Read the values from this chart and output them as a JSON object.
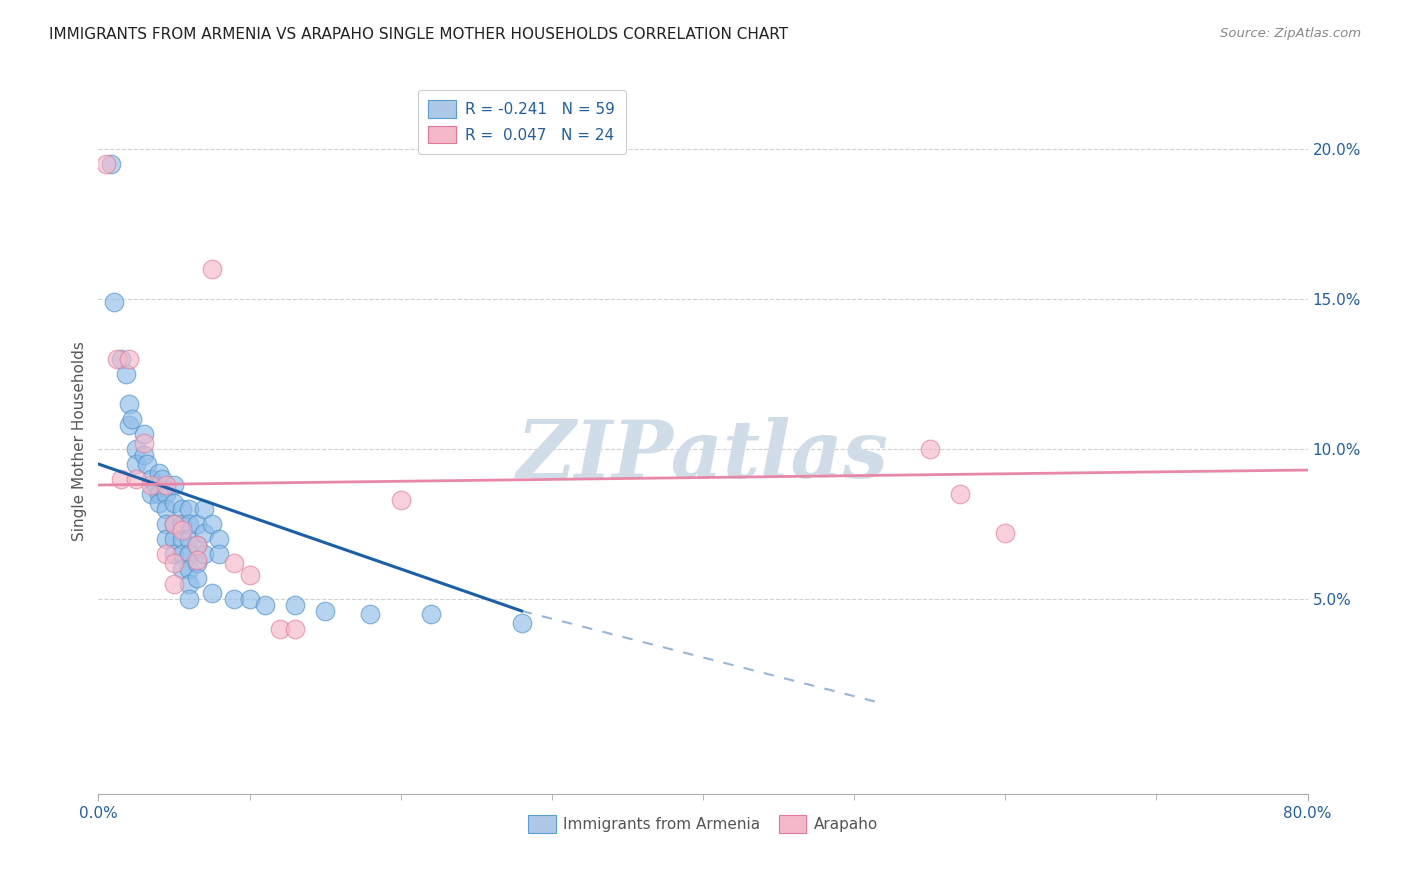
{
  "title": "IMMIGRANTS FROM ARMENIA VS ARAPAHO SINGLE MOTHER HOUSEHOLDS CORRELATION CHART",
  "source": "Source: ZipAtlas.com",
  "ylabel": "Single Mother Households",
  "yticks": [
    5,
    10,
    15,
    20
  ],
  "ylabels": [
    "5.0%",
    "10.0%",
    "15.0%",
    "20.0%"
  ],
  "xlim": [
    0,
    80
  ],
  "ylim": [
    -1.5,
    22
  ],
  "legend_top": [
    {
      "label": "R = -0.241   N = 59",
      "fc": "#aec8e8",
      "ec": "#5a9fd4"
    },
    {
      "label": "R =  0.047   N = 24",
      "fc": "#f5b8c8",
      "ec": "#e07898"
    }
  ],
  "legend_bottom": [
    "Immigrants from Armenia",
    "Arapaho"
  ],
  "blue_fc": "#90bce8",
  "blue_ec": "#4a8fc4",
  "pink_fc": "#f5b8c8",
  "pink_ec": "#e07898",
  "blue_line_color": "#1a5fa8",
  "pink_line_color": "#e888a8",
  "watermark": "ZIPatlas",
  "watermark_color": "#d0dde8",
  "blue_points": [
    [
      0.8,
      19.5
    ],
    [
      1.0,
      14.9
    ],
    [
      1.5,
      13.0
    ],
    [
      1.8,
      12.5
    ],
    [
      2.0,
      11.5
    ],
    [
      2.0,
      10.8
    ],
    [
      2.2,
      11.0
    ],
    [
      2.5,
      10.0
    ],
    [
      2.5,
      9.5
    ],
    [
      3.0,
      10.5
    ],
    [
      3.0,
      9.8
    ],
    [
      3.2,
      9.5
    ],
    [
      3.5,
      9.0
    ],
    [
      3.5,
      8.5
    ],
    [
      3.8,
      8.8
    ],
    [
      4.0,
      9.2
    ],
    [
      4.0,
      8.5
    ],
    [
      4.0,
      8.2
    ],
    [
      4.2,
      9.0
    ],
    [
      4.5,
      8.5
    ],
    [
      4.5,
      8.0
    ],
    [
      4.5,
      7.5
    ],
    [
      4.5,
      7.0
    ],
    [
      5.0,
      8.8
    ],
    [
      5.0,
      8.2
    ],
    [
      5.0,
      7.5
    ],
    [
      5.0,
      7.0
    ],
    [
      5.0,
      6.5
    ],
    [
      5.5,
      8.0
    ],
    [
      5.5,
      7.5
    ],
    [
      5.5,
      7.0
    ],
    [
      5.5,
      6.5
    ],
    [
      5.5,
      6.0
    ],
    [
      6.0,
      8.0
    ],
    [
      6.0,
      7.5
    ],
    [
      6.0,
      7.0
    ],
    [
      6.0,
      6.5
    ],
    [
      6.0,
      6.0
    ],
    [
      6.0,
      5.5
    ],
    [
      6.0,
      5.0
    ],
    [
      6.5,
      7.5
    ],
    [
      6.5,
      6.8
    ],
    [
      6.5,
      6.2
    ],
    [
      6.5,
      5.7
    ],
    [
      7.0,
      8.0
    ],
    [
      7.0,
      7.2
    ],
    [
      7.0,
      6.5
    ],
    [
      7.5,
      7.5
    ],
    [
      7.5,
      5.2
    ],
    [
      8.0,
      7.0
    ],
    [
      8.0,
      6.5
    ],
    [
      9.0,
      5.0
    ],
    [
      10.0,
      5.0
    ],
    [
      11.0,
      4.8
    ],
    [
      13.0,
      4.8
    ],
    [
      15.0,
      4.6
    ],
    [
      18.0,
      4.5
    ],
    [
      22.0,
      4.5
    ],
    [
      28.0,
      4.2
    ]
  ],
  "pink_points": [
    [
      0.5,
      19.5
    ],
    [
      1.2,
      13.0
    ],
    [
      1.5,
      9.0
    ],
    [
      2.0,
      13.0
    ],
    [
      2.5,
      9.0
    ],
    [
      3.0,
      10.2
    ],
    [
      3.5,
      8.8
    ],
    [
      4.5,
      8.8
    ],
    [
      4.5,
      6.5
    ],
    [
      5.0,
      7.5
    ],
    [
      5.0,
      6.2
    ],
    [
      5.0,
      5.5
    ],
    [
      5.5,
      7.3
    ],
    [
      6.5,
      6.8
    ],
    [
      6.5,
      6.3
    ],
    [
      7.5,
      16.0
    ],
    [
      9.0,
      6.2
    ],
    [
      10.0,
      5.8
    ],
    [
      12.0,
      4.0
    ],
    [
      13.0,
      4.0
    ],
    [
      20.0,
      8.3
    ],
    [
      55.0,
      10.0
    ],
    [
      57.0,
      8.5
    ],
    [
      60.0,
      7.2
    ]
  ],
  "blue_trend": {
    "x": [
      0,
      28
    ],
    "y": [
      9.5,
      4.6
    ]
  },
  "blue_dash": {
    "x": [
      28,
      52
    ],
    "y": [
      4.6,
      1.5
    ]
  },
  "pink_trend": {
    "x": [
      0,
      80
    ],
    "y": [
      8.8,
      9.3
    ]
  }
}
